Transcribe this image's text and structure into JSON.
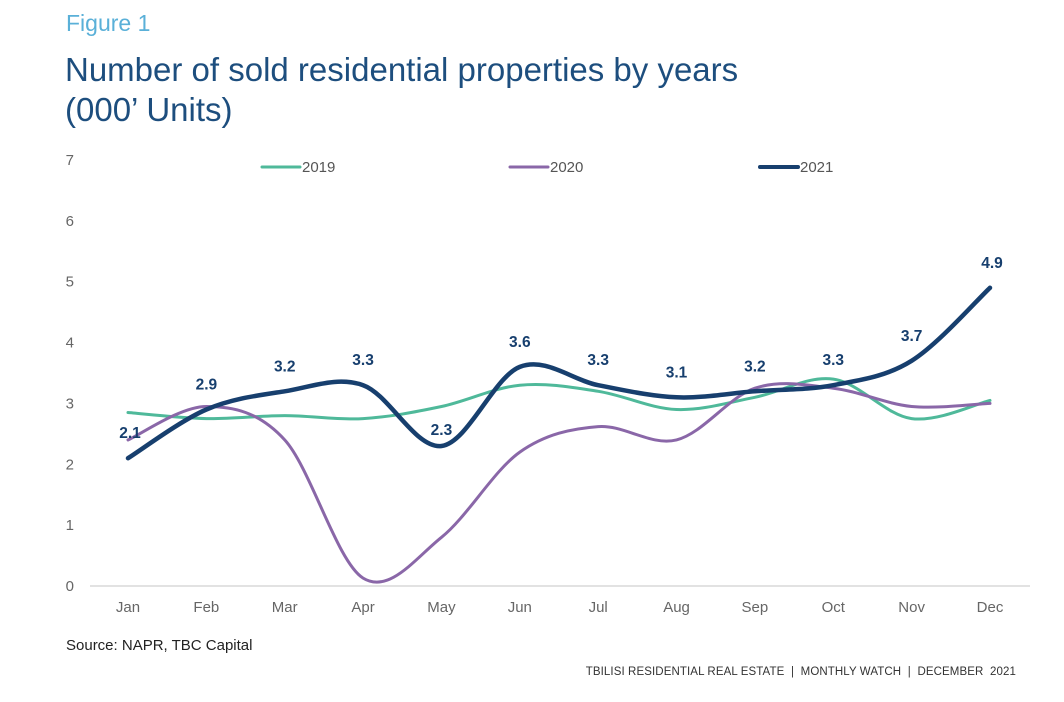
{
  "figure_label": "Figure 1",
  "title_line1": "Number of sold residential properties by years",
  "title_line2": "(000’ Units)",
  "source": "Source: NAPR, TBC Capital",
  "footer": "TBILISI RESIDENTIAL REAL ESTATE  |  MONTHLY WATCH  |  DECEMBER  2021",
  "chart_data": {
    "type": "line",
    "title": "Number of sold residential properties by years (000’ Units)",
    "xlabel": "",
    "ylabel": "",
    "categories": [
      "Jan",
      "Feb",
      "Mar",
      "Apr",
      "May",
      "Jun",
      "Jul",
      "Aug",
      "Sep",
      "Oct",
      "Nov",
      "Dec"
    ],
    "ylim": [
      0,
      7
    ],
    "yticks": [
      0,
      1,
      2,
      3,
      4,
      5,
      6,
      7
    ],
    "grid": false,
    "smooth": true,
    "legend_position": "top",
    "series": [
      {
        "name": "2019",
        "color": "#4fb99a",
        "values": [
          2.85,
          2.75,
          2.8,
          2.75,
          2.95,
          3.3,
          3.2,
          2.9,
          3.1,
          3.4,
          2.75,
          3.05
        ],
        "labels": false
      },
      {
        "name": "2020",
        "color": "#8a67a8",
        "values": [
          2.4,
          2.95,
          2.4,
          0.13,
          0.8,
          2.2,
          2.62,
          2.4,
          3.25,
          3.25,
          2.95,
          3.0
        ],
        "labels": false
      },
      {
        "name": "2021",
        "color": "#173f6e",
        "values": [
          2.1,
          2.9,
          3.2,
          3.3,
          2.3,
          3.6,
          3.3,
          3.1,
          3.2,
          3.3,
          3.7,
          4.9
        ],
        "labels": true,
        "data_labels": [
          "2.1",
          "2.9",
          "3.2",
          "3.3",
          "2.3",
          "3.6",
          "3.3",
          "3.1",
          "3.2",
          "3.3",
          "3.7",
          "4.9"
        ]
      }
    ]
  }
}
